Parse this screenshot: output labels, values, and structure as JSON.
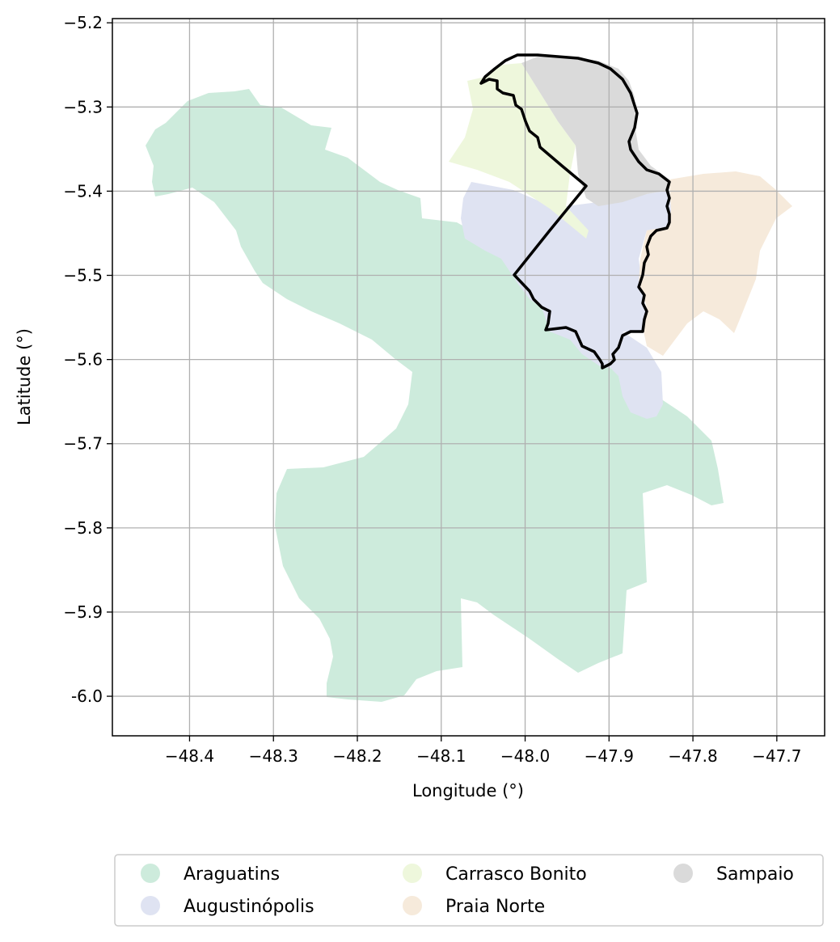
{
  "map": {
    "xlabel": "Longitude (°)",
    "ylabel": "Latitude (°)",
    "x_ticks": [
      {
        "value": -48.4,
        "label": "−48.4"
      },
      {
        "value": -48.3,
        "label": "−48.3"
      },
      {
        "value": -48.2,
        "label": "−48.2"
      },
      {
        "value": -48.1,
        "label": "−48.1"
      },
      {
        "value": -48.0,
        "label": "−48.0"
      },
      {
        "value": -47.9,
        "label": "−47.9"
      },
      {
        "value": -47.8,
        "label": "−47.8"
      },
      {
        "value": -47.7,
        "label": "−47.7"
      }
    ],
    "y_ticks": [
      {
        "value": -5.2,
        "label": "−5.2"
      },
      {
        "value": -5.3,
        "label": "−5.3"
      },
      {
        "value": -5.4,
        "label": "−5.4"
      },
      {
        "value": -5.5,
        "label": "−5.5"
      },
      {
        "value": -5.6,
        "label": "−5.6"
      },
      {
        "value": -5.7,
        "label": "−5.7"
      },
      {
        "value": -5.8,
        "label": "−5.8"
      },
      {
        "value": -5.9,
        "label": "−5.9"
      },
      {
        "value": -6.0,
        "label": "6.0",
        "prefix": "-"
      }
    ],
    "xlim": [
      -48.492,
      -47.643
    ],
    "ylim": [
      -6.047,
      -5.195
    ],
    "grid": true,
    "legend_placement": "bottom-center",
    "regions": [
      {
        "name": "Araguatins",
        "color": "#cdebdc"
      },
      {
        "name": "Augustinópolis",
        "color": "#dfe3f2"
      },
      {
        "name": "Carrasco Bonito",
        "color": "#eef7dc"
      },
      {
        "name": "Praia Norte",
        "color": "#f6eadb"
      },
      {
        "name": "Sampaio",
        "color": "#dadada"
      }
    ],
    "highlight_outline_color": "#000000"
  }
}
